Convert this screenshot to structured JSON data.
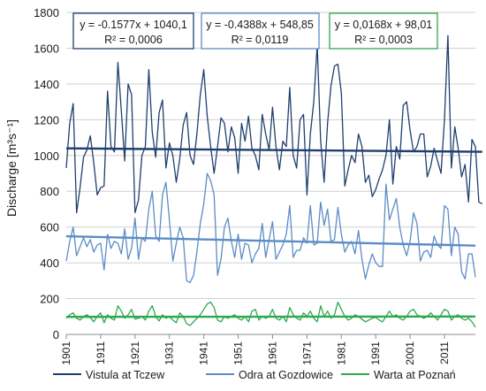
{
  "chart_data": {
    "type": "line",
    "ylabel": "Discharge [m³s⁻¹]",
    "ylim": [
      0,
      1800
    ],
    "yticks": [
      0,
      200,
      400,
      600,
      800,
      1000,
      1200,
      1400,
      1600,
      1800
    ],
    "xlim": [
      1901,
      2020
    ],
    "xticks": [
      1901,
      1911,
      1921,
      1931,
      1941,
      1951,
      1961,
      1971,
      1981,
      1991,
      2001,
      2011
    ],
    "grid": true,
    "legend_position": "bottom",
    "series": [
      {
        "name": "Vistula at Tczew",
        "color": "#1f3f6e",
        "trend": {
          "slope": -0.1577,
          "intercept": 1040.1
        },
        "equation": "y = -0.1577x + 1040,1",
        "r2": "R² = 0,0006",
        "values": [
          930,
          1180,
          1290,
          680,
          820,
          990,
          1030,
          1110,
          960,
          780,
          820,
          830,
          1360,
          1050,
          1020,
          1520,
          1250,
          970,
          1400,
          1340,
          680,
          750,
          1000,
          1050,
          1480,
          1130,
          990,
          1240,
          1310,
          930,
          1070,
          1000,
          850,
          980,
          1170,
          1240,
          1000,
          950,
          1120,
          1340,
          1480,
          1220,
          1050,
          900,
          1050,
          1210,
          1180,
          1020,
          1160,
          1100,
          900,
          1180,
          1080,
          1220,
          1040,
          1000,
          920,
          1230,
          1120,
          1030,
          1270,
          1050,
          920,
          1080,
          1050,
          1380,
          1000,
          930,
          1200,
          1230,
          780,
          1120,
          1300,
          1620,
          1080,
          850,
          1180,
          1390,
          1500,
          1510,
          1350,
          830,
          920,
          1000,
          960,
          1120,
          1050,
          850,
          890,
          770,
          810,
          870,
          920,
          1000,
          1200,
          840,
          1050,
          980,
          1280,
          1300,
          1140,
          1020,
          1050,
          1120,
          1120,
          880,
          940,
          1040,
          970,
          900,
          1200,
          1670,
          930,
          1160,
          1040,
          880,
          950,
          740,
          1090,
          1050,
          740,
          730
        ]
      },
      {
        "name": "Odra at Gozdowice",
        "color": "#5b8cc6",
        "trend": {
          "slope": -0.4388,
          "intercept": 548.85
        },
        "equation": "y = -0.4388x + 548,85",
        "r2": "R² = 0,0119",
        "values": [
          410,
          520,
          600,
          440,
          490,
          540,
          490,
          530,
          460,
          500,
          510,
          360,
          560,
          480,
          520,
          510,
          450,
          590,
          420,
          480,
          650,
          420,
          540,
          520,
          700,
          800,
          550,
          520,
          780,
          850,
          640,
          410,
          510,
          600,
          540,
          300,
          290,
          330,
          460,
          620,
          730,
          900,
          860,
          780,
          330,
          420,
          600,
          650,
          520,
          430,
          560,
          420,
          510,
          500,
          400,
          450,
          480,
          620,
          430,
          530,
          630,
          420,
          460,
          500,
          560,
          720,
          430,
          470,
          470,
          540,
          510,
          720,
          500,
          510,
          740,
          610,
          700,
          520,
          530,
          710,
          560,
          460,
          500,
          520,
          450,
          580,
          420,
          310,
          390,
          450,
          400,
          380,
          380,
          840,
          640,
          700,
          760,
          600,
          500,
          440,
          520,
          680,
          620,
          410,
          460,
          470,
          430,
          550,
          500,
          480,
          720,
          700,
          440,
          600,
          560,
          350,
          310,
          450,
          450,
          320
        ]
      },
      {
        "name": "Warta at Poznań",
        "color": "#2fa84f",
        "trend": {
          "slope": 0.0168,
          "intercept": 98.01
        },
        "equation": "y = 0,0168x + 98,01",
        "r2": "R² = 0,0003",
        "values": [
          90,
          110,
          120,
          90,
          80,
          100,
          110,
          95,
          70,
          100,
          120,
          65,
          110,
          90,
          80,
          160,
          130,
          90,
          110,
          140,
          85,
          90,
          100,
          80,
          130,
          160,
          100,
          75,
          110,
          90,
          100,
          80,
          65,
          120,
          100,
          60,
          50,
          70,
          90,
          110,
          140,
          170,
          180,
          150,
          80,
          70,
          100,
          90,
          100,
          110,
          90,
          80,
          100,
          70,
          130,
          140,
          80,
          100,
          90,
          100,
          140,
          90,
          80,
          100,
          70,
          150,
          110,
          90,
          80,
          120,
          100,
          130,
          90,
          70,
          160,
          100,
          130,
          90,
          110,
          180,
          140,
          100,
          80,
          90,
          110,
          100,
          85,
          70,
          80,
          90,
          95,
          80,
          70,
          100,
          130,
          100,
          110,
          90,
          80,
          100,
          130,
          140,
          110,
          100,
          90,
          100,
          120,
          100,
          80,
          110,
          140,
          130,
          80,
          100,
          110,
          90,
          80,
          90,
          70,
          40
        ]
      }
    ]
  }
}
